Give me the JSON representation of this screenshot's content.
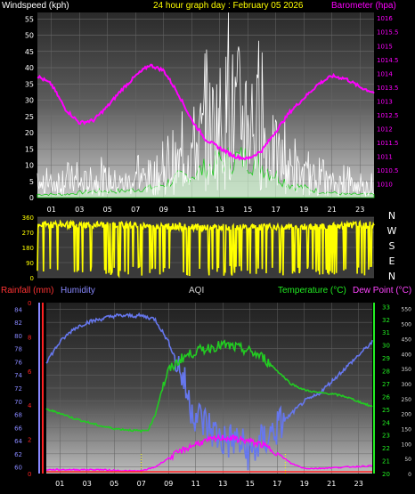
{
  "header": {
    "left": "Windspeed (kph)",
    "center": "24 hour graph day : February 05 2026",
    "right": "Barometer (hpa)"
  },
  "bottom_labels": {
    "rain": "Rainfall (mm)",
    "humidity": "Humidity",
    "aqi": "AQI",
    "temperature": "Temperature (°C)",
    "dewpoint": "Dew Point (°C)"
  },
  "colors": {
    "wind": "#ffffff",
    "gust_fill": "#c8f0c8",
    "baro": "#ff00ff",
    "dir": "#ffff00",
    "temp": "#22cc22",
    "dew": "#ff00ff",
    "humidity": "#6677ee",
    "rain_axis": "#ff2222",
    "hum_axis": "#8888ff",
    "temp_axis": "#22ee22",
    "dew_axis": "#ff44ff",
    "aqi_axis": "#dddddd"
  },
  "chart_data": [
    {
      "type": "line",
      "name": "wind-baro",
      "x_ticks": [
        "01",
        "03",
        "05",
        "07",
        "09",
        "11",
        "13",
        "15",
        "17",
        "19",
        "21",
        "23"
      ],
      "ylim": [
        0,
        57
      ],
      "y_ticks": [
        0,
        5,
        10,
        15,
        20,
        25,
        30,
        35,
        40,
        45,
        50,
        55
      ],
      "y2lim": [
        1009.5,
        1016.2
      ],
      "y2_ticks": [
        "1010",
        "1010.5",
        "1011",
        "1011.5",
        "1012",
        "1012.5",
        "1013",
        "1013.5",
        "1014",
        "1014.5",
        "1015",
        "1015.5",
        "1016"
      ],
      "series": [
        {
          "name": "Windspeed",
          "x": [
            0,
            1,
            2,
            3,
            4,
            5,
            6,
            7,
            8,
            9,
            10,
            11,
            12,
            13,
            14,
            15,
            16,
            17,
            18,
            19,
            20,
            21,
            22,
            23,
            24
          ],
          "values": [
            3,
            4,
            6,
            4,
            5,
            5,
            4,
            5,
            6,
            7,
            9,
            14,
            18,
            22,
            24,
            24,
            18,
            12,
            8,
            6,
            5,
            4,
            4,
            3,
            3
          ]
        },
        {
          "name": "Barometer",
          "x": [
            0,
            1,
            2,
            3,
            4,
            5,
            6,
            7,
            8,
            9,
            10,
            11,
            12,
            13,
            14,
            15,
            16,
            17,
            18,
            19,
            20,
            21,
            22,
            23,
            24
          ],
          "values": [
            1013.9,
            1013.6,
            1012.7,
            1012.2,
            1012.3,
            1012.8,
            1013.4,
            1013.9,
            1014.3,
            1014.1,
            1013.3,
            1012.3,
            1011.6,
            1011.3,
            1011.0,
            1010.9,
            1011.2,
            1011.9,
            1012.6,
            1013.1,
            1013.6,
            1013.9,
            1013.8,
            1013.5,
            1013.3
          ]
        },
        {
          "name": "Gust",
          "x": [
            0,
            2,
            4,
            6,
            8,
            9,
            10,
            11,
            12,
            13,
            14,
            15,
            16,
            17,
            18,
            20,
            22,
            24
          ],
          "values": [
            1,
            1,
            2,
            2,
            3,
            4,
            6,
            7,
            9,
            11,
            12,
            12,
            10,
            7,
            4,
            2,
            1,
            1
          ]
        }
      ]
    },
    {
      "type": "line",
      "name": "wind-direction",
      "y_ticks": [
        0,
        90,
        180,
        270,
        360
      ],
      "ylim": [
        0,
        360
      ],
      "compass": [
        "N",
        "W",
        "S",
        "E",
        "N"
      ],
      "series": [
        {
          "name": "Direction",
          "x": [
            0,
            6,
            12,
            18,
            24
          ],
          "values": [
            315,
            315,
            300,
            300,
            315
          ]
        }
      ]
    },
    {
      "type": "line",
      "name": "temp-humidity",
      "x_ticks": [
        "01",
        "03",
        "05",
        "07",
        "09",
        "11",
        "13",
        "15",
        "17",
        "19",
        "21",
        "23"
      ],
      "rain_ticks": [
        "0",
        "2",
        "4",
        "6",
        "8",
        "0"
      ],
      "hum_ticks": [
        60,
        62,
        64,
        66,
        68,
        70,
        72,
        74,
        76,
        78,
        80,
        82,
        84
      ],
      "hum_lim": [
        59,
        85
      ],
      "temp_ticks": [
        20,
        21,
        22,
        23,
        24,
        25,
        26,
        27,
        28,
        29,
        30,
        31,
        32,
        33
      ],
      "temp_lim": [
        20,
        33.3
      ],
      "aqi_ticks": [
        0,
        50,
        100,
        150,
        200,
        250,
        300,
        350,
        400,
        450,
        500,
        550
      ],
      "aqi_lim": [
        0,
        570
      ],
      "series": [
        {
          "name": "Temperature",
          "x": [
            0,
            1,
            2,
            3,
            4,
            5,
            6,
            7,
            7.5,
            8,
            8.5,
            9,
            9.5,
            10,
            11,
            12,
            13,
            14,
            15,
            16,
            17,
            18,
            19,
            20,
            21,
            22,
            23,
            24
          ],
          "values": [
            25,
            24.7,
            24.3,
            24.0,
            23.7,
            23.5,
            23.4,
            23.3,
            23.4,
            24.5,
            26.5,
            28,
            28.5,
            29,
            29.5,
            29.8,
            30,
            29.8,
            29.5,
            29,
            28,
            27,
            26.5,
            26.3,
            26.2,
            26,
            25.6,
            25.2
          ]
        },
        {
          "name": "Dew Point",
          "x": [
            0,
            2,
            4,
            6,
            7,
            8,
            9,
            10,
            11,
            12,
            13,
            14,
            15,
            16,
            17,
            18,
            19,
            20,
            22,
            24
          ],
          "values": [
            20.3,
            20.3,
            20.3,
            20.2,
            20.2,
            20.5,
            21.2,
            21.8,
            22.3,
            22.6,
            22.8,
            22.7,
            22.5,
            22.2,
            21.6,
            20.8,
            20.4,
            20.4,
            20.5,
            20.6
          ]
        },
        {
          "name": "Humidity",
          "x": [
            0,
            1,
            2,
            3,
            4,
            5,
            6,
            7,
            8,
            9,
            10,
            10.5,
            11,
            12,
            13,
            14,
            15,
            16,
            17,
            18,
            19,
            20,
            21,
            22,
            23,
            24
          ],
          "values": [
            76,
            79,
            81,
            82,
            82.5,
            83,
            83,
            83,
            82.5,
            79,
            74,
            70,
            68,
            66,
            64,
            64,
            62,
            64,
            66,
            68,
            70,
            71,
            73,
            75,
            77,
            79
          ]
        },
        {
          "name": "Rainfall",
          "x": [
            0,
            24
          ],
          "values": [
            0,
            0
          ]
        }
      ]
    }
  ]
}
